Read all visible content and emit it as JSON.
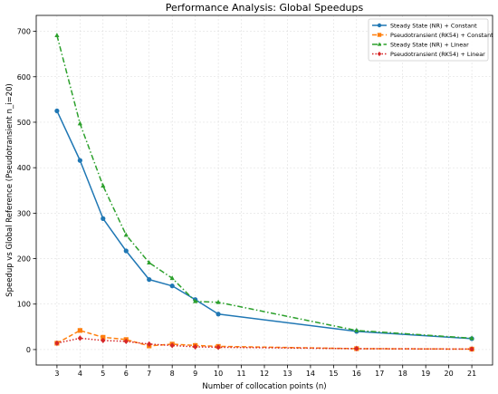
{
  "chart_data": {
    "type": "line",
    "title": "Performance Analysis: Global Speedups",
    "xlabel": "Number of collocation points (n)",
    "ylabel": "Speedup vs Global Reference (Pseudotransient n_i=20)",
    "x_ticks": [
      3,
      4,
      5,
      6,
      7,
      8,
      9,
      10,
      11,
      12,
      13,
      14,
      15,
      16,
      17,
      18,
      19,
      20,
      21
    ],
    "y_ticks": [
      0,
      100,
      200,
      300,
      400,
      500,
      600,
      700
    ],
    "xlim": [
      2.1,
      21.9
    ],
    "ylim": [
      -34,
      735
    ],
    "grid": true,
    "legend_position": "top-right",
    "series": [
      {
        "name": "Steady State (NR) + Constant",
        "color": "#1f77b4",
        "marker": "circle",
        "linestyle": "solid",
        "x": [
          3,
          4,
          5,
          6,
          7,
          8,
          9,
          10,
          16,
          21
        ],
        "y": [
          525,
          416,
          288,
          217,
          154,
          140,
          110,
          78,
          40,
          24
        ]
      },
      {
        "name": "Pseudotransient (RK54) + Constant",
        "color": "#ff7f0e",
        "marker": "square",
        "linestyle": "dashed",
        "x": [
          3,
          4,
          5,
          6,
          7,
          8,
          9,
          10,
          16,
          21
        ],
        "y": [
          14,
          42,
          27,
          22,
          8,
          12,
          9,
          7,
          2,
          1
        ]
      },
      {
        "name": "Steady State (NR) + Linear",
        "color": "#2ca02c",
        "marker": "triangle",
        "linestyle": "dashdot",
        "x": [
          3,
          4,
          5,
          6,
          7,
          8,
          9,
          10,
          16,
          21
        ],
        "y": [
          691,
          497,
          360,
          252,
          191,
          157,
          106,
          104,
          42,
          25
        ]
      },
      {
        "name": "Pseudotransient (RK54) + Linear",
        "color": "#d62728",
        "marker": "diamond",
        "linestyle": "dotted",
        "x": [
          3,
          4,
          5,
          6,
          7,
          8,
          9,
          10,
          16,
          21
        ],
        "y": [
          14,
          25,
          20,
          18,
          12,
          9,
          6,
          5,
          2,
          1
        ]
      }
    ]
  }
}
